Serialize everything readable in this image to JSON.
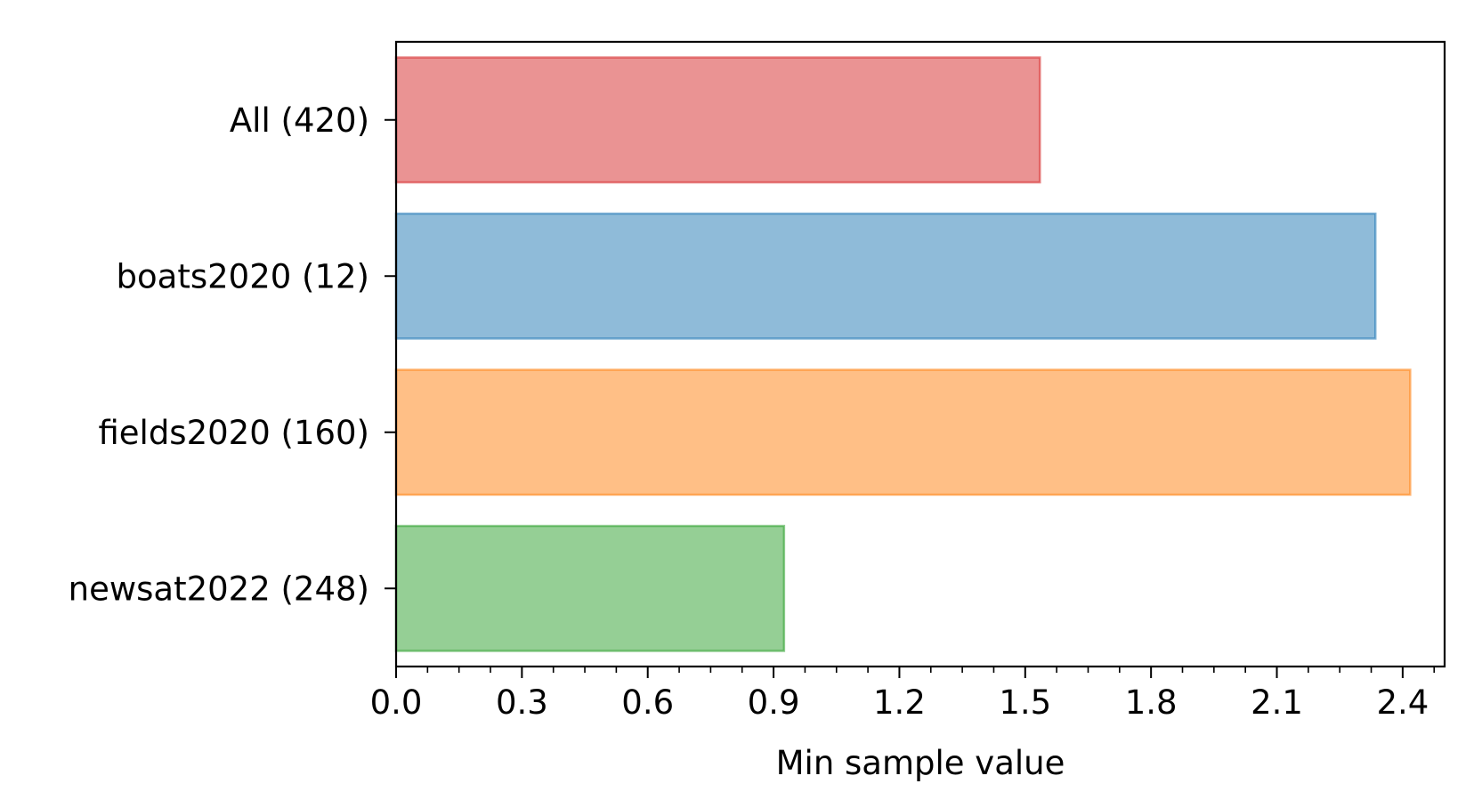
{
  "chart_data": {
    "type": "bar",
    "orientation": "horizontal",
    "title": "",
    "xlabel": "Min sample value",
    "ylabel": "",
    "xlim": [
      0,
      2.5
    ],
    "xticks_major": [
      0.0,
      0.3,
      0.6,
      0.9,
      1.2,
      1.5,
      1.8,
      2.1,
      2.4
    ],
    "xtick_labels": [
      "0.0",
      "0.3",
      "0.6",
      "0.9",
      "1.2",
      "1.5",
      "1.8",
      "2.1",
      "2.4"
    ],
    "xticks_minor_step": 0.075,
    "grid": false,
    "legend": "none",
    "categories": [
      "All (420)",
      "boats2020 (12)",
      "fields2020 (160)",
      "newsat2022 (248)"
    ],
    "values": [
      1.535,
      2.335,
      2.418,
      0.925
    ],
    "colors": [
      "#d62728",
      "#1f77b4",
      "#ff7f0e",
      "#2ca02c"
    ],
    "bar_opacity": 0.5
  }
}
